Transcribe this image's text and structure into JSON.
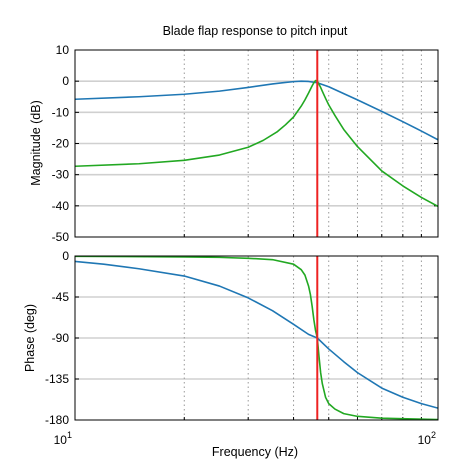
{
  "chart_data": {
    "type": "line",
    "title": "Blade flap response to pitch input",
    "xlabel": "Frequency  (Hz)",
    "x_scale": "log",
    "xlim": [
      10,
      100
    ],
    "x_tick_labels": [
      {
        "base": "10",
        "exp": "1"
      },
      {
        "base": "10",
        "exp": "2"
      }
    ],
    "grid": true,
    "colors": {
      "blue": "#1f77b4",
      "green": "#22a822",
      "red": "#ee2222"
    },
    "marker_line_x": 46.5,
    "panels": [
      {
        "name": "magnitude",
        "ylabel": "Magnitude (dB)",
        "ylim": [
          -50,
          10
        ],
        "yticks": [
          10,
          0,
          -10,
          -20,
          -30,
          -40,
          -50
        ],
        "series": [
          {
            "color": "blue",
            "x": [
              10,
              15,
              20,
              25,
              30,
              35,
              38,
              40,
              42,
              44,
              46.5,
              50,
              55,
              60,
              70,
              80,
              90,
              100
            ],
            "y": [
              -5.8,
              -5.0,
              -4.2,
              -3.2,
              -2.0,
              -0.9,
              -0.4,
              -0.15,
              0,
              -0.1,
              -0.5,
              -1.8,
              -4.0,
              -6.0,
              -9.7,
              -13.0,
              -16.0,
              -18.8
            ]
          },
          {
            "color": "green",
            "x": [
              10,
              15,
              20,
              25,
              30,
              33,
              36,
              38,
              40,
              42,
              43,
              44,
              45,
              45.5,
              46,
              46.5,
              47,
              47.5,
              48,
              49,
              50,
              52,
              55,
              60,
              70,
              80,
              90,
              100
            ],
            "y": [
              -27.3,
              -26.5,
              -25.4,
              -23.7,
              -21.2,
              -19.0,
              -16.3,
              -14.0,
              -11.5,
              -8.0,
              -6.0,
              -3.8,
              -1.5,
              -0.5,
              0.2,
              0,
              -1.0,
              -2.0,
              -3.2,
              -5.5,
              -7.6,
              -11.0,
              -15.5,
              -21.0,
              -28.8,
              -33.6,
              -37.3,
              -40.2
            ]
          }
        ]
      },
      {
        "name": "phase",
        "ylabel": "Phase (deg)",
        "ylim": [
          -180,
          0
        ],
        "yticks": [
          0,
          -45,
          -90,
          -135,
          -180
        ],
        "series": [
          {
            "color": "blue",
            "x": [
              10,
              12,
              15,
              20,
              25,
              30,
              35,
              40,
              44,
              46.5,
              50,
              55,
              60,
              70,
              80,
              90,
              100
            ],
            "y": [
              -6,
              -9,
              -14,
              -22,
              -33,
              -46,
              -60,
              -75,
              -86,
              -90,
              -102,
              -116,
              -128,
              -145,
              -155,
              -162,
              -167
            ]
          },
          {
            "color": "green",
            "x": [
              10,
              20,
              25,
              30,
              35,
              40,
              42,
              43,
              44,
              44.5,
              45,
              45.5,
              46,
              46.5,
              47,
              47.5,
              48,
              49,
              50,
              52,
              55,
              60,
              70,
              100
            ],
            "y": [
              -0.3,
              -1,
              -1.5,
              -2.5,
              -4,
              -9,
              -15,
              -21,
              -33,
              -42,
              -55,
              -70,
              -82,
              -90,
              -110,
              -128,
              -140,
              -155,
              -162,
              -168,
              -173,
              -176,
              -178,
              -179.5
            ]
          }
        ]
      }
    ]
  }
}
